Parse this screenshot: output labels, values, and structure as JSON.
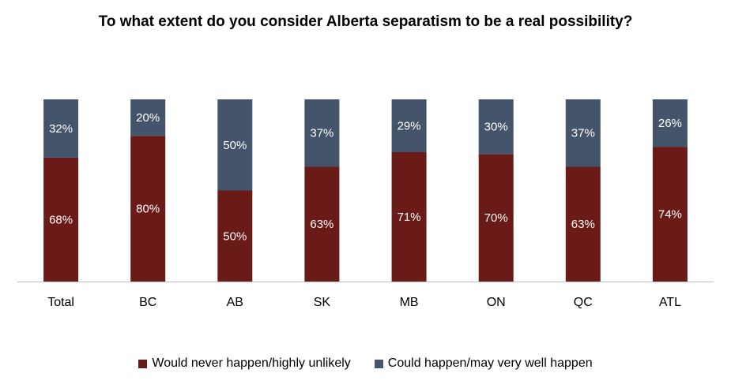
{
  "chart_data": {
    "type": "bar",
    "stacked": true,
    "title": "To what extent do you consider Alberta separatism to be a real possibility?",
    "xlabel": "",
    "ylabel": "",
    "ylim": [
      0,
      100
    ],
    "grid": false,
    "legend_position": "bottom",
    "categories": [
      "Total",
      "BC",
      "AB",
      "SK",
      "MB",
      "ON",
      "QC",
      "ATL"
    ],
    "series": [
      {
        "name": "Would never happen/highly unlikely",
        "color": "#6a1a17",
        "values": [
          68,
          80,
          50,
          63,
          71,
          70,
          63,
          74
        ],
        "labels": [
          "68%",
          "80%",
          "50%",
          "63%",
          "71%",
          "70%",
          "63%",
          "74%"
        ]
      },
      {
        "name": "Could happen/may very well happen",
        "color": "#44546a",
        "values": [
          32,
          20,
          50,
          37,
          29,
          30,
          37,
          26
        ],
        "labels": [
          "32%",
          "20%",
          "50%",
          "37%",
          "29%",
          "30%",
          "37%",
          "26%"
        ]
      }
    ]
  }
}
